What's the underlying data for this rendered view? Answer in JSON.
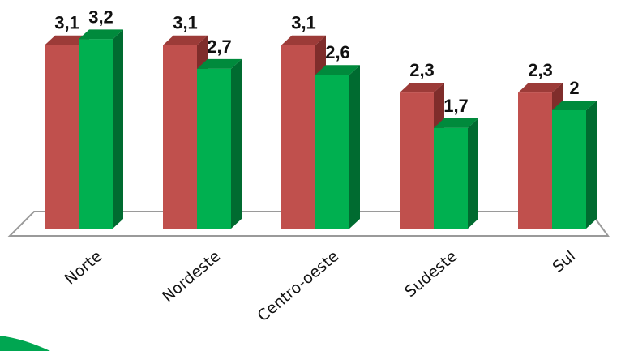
{
  "chart_data": {
    "type": "bar",
    "categories": [
      "Norte",
      "Nordeste",
      "Centro-oeste",
      "Sudeste",
      "Sul"
    ],
    "series": [
      {
        "values": [
          3.1,
          3.1,
          3.1,
          2.3,
          2.3
        ]
      },
      {
        "values": [
          3.2,
          2.7,
          2.6,
          1.7,
          2
        ]
      }
    ],
    "value_labels": [
      [
        "3,1",
        "3,1",
        "3,1",
        "2,3",
        "2,3"
      ],
      [
        "3,2",
        "2,7",
        "2,6",
        "1,7",
        "2"
      ]
    ],
    "ylim": [
      0,
      3.2
    ],
    "grid": false,
    "three_d": true
  },
  "colors": {
    "series": [
      "#c0504d",
      "#00b050"
    ],
    "series_dark": [
      "#7f2d2b",
      "#006b30"
    ],
    "series_top": [
      "#9c3b38",
      "#008a3c"
    ],
    "floor_stroke": "#9a9a9a",
    "accent": "#00a651"
  }
}
